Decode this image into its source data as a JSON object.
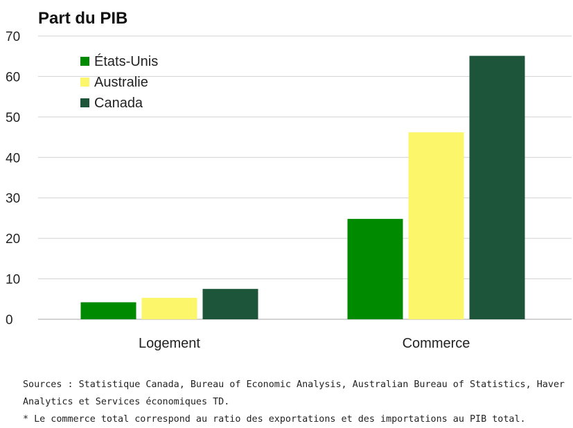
{
  "chart_data": {
    "type": "bar",
    "title": "Part du PIB",
    "categories": [
      "Logement",
      "Commerce"
    ],
    "series": [
      {
        "name": "États-Unis",
        "color": "#008a00",
        "values": [
          4.2,
          24.8
        ]
      },
      {
        "name": "Australie",
        "color": "#fcf66b",
        "values": [
          5.3,
          46.2
        ]
      },
      {
        "name": "Canada",
        "color": "#1c553a",
        "values": [
          7.5,
          65.1
        ]
      }
    ],
    "ylim": [
      0,
      70
    ],
    "yticks": [
      0,
      10,
      20,
      30,
      40,
      50,
      60,
      70
    ],
    "grid": true,
    "legend": "top-left"
  },
  "footer": {
    "sources": "Sources : Statistique Canada, Bureau of Economic Analysis, Australian Bureau of Statistics, Haver Analytics et Services économiques TD.",
    "note": "* Le commerce total correspond au ratio des exportations et des importations au PIB total."
  }
}
